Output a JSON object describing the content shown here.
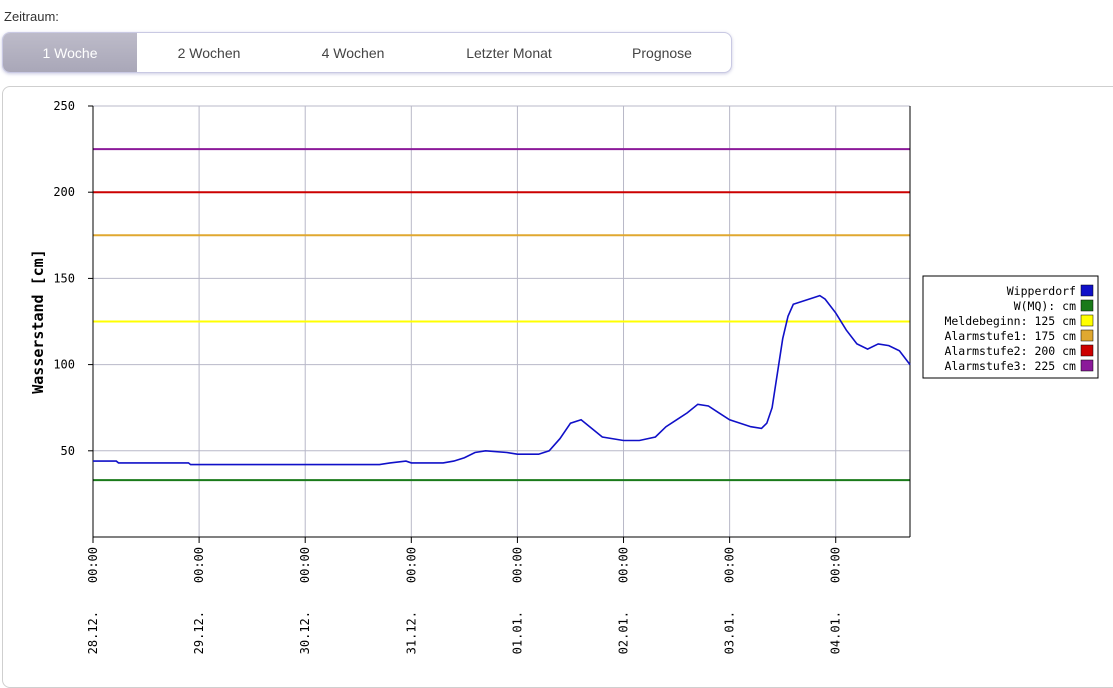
{
  "header": {
    "zeitraum_label": "Zeitraum:"
  },
  "tabs": [
    {
      "label": "1 Woche",
      "active": true
    },
    {
      "label": "2 Wochen",
      "active": false
    },
    {
      "label": "4 Wochen",
      "active": false
    },
    {
      "label": "Letzter Monat",
      "active": false
    },
    {
      "label": "Prognose",
      "active": false
    }
  ],
  "chart_data": {
    "type": "line",
    "title": "",
    "xlabel": "",
    "ylabel": "Wasserstand [cm]",
    "ylim": [
      0,
      250
    ],
    "yticks": [
      50,
      100,
      150,
      200,
      250
    ],
    "xlim": [
      0,
      7.7
    ],
    "xticks": [
      {
        "x": 0,
        "label": "28.12. 00:00"
      },
      {
        "x": 1,
        "label": "29.12. 00:00"
      },
      {
        "x": 2,
        "label": "30.12. 00:00"
      },
      {
        "x": 3,
        "label": "31.12. 00:00"
      },
      {
        "x": 4,
        "label": "01.01. 00:00"
      },
      {
        "x": 5,
        "label": "02.01. 00:00"
      },
      {
        "x": 6,
        "label": "03.01. 00:00"
      },
      {
        "x": 7,
        "label": "04.01. 00:00"
      }
    ],
    "grid": true,
    "legend_position": "right",
    "thresholds": [
      {
        "name": "W(MQ):  cm",
        "value": 33,
        "color": "#1a7a1a"
      },
      {
        "name": "Meldebeginn: 125 cm",
        "value": 125,
        "color": "#ffff00"
      },
      {
        "name": "Alarmstufe1: 175 cm",
        "value": 175,
        "color": "#e0a830"
      },
      {
        "name": "Alarmstufe2: 200 cm",
        "value": 200,
        "color": "#cc0000"
      },
      {
        "name": "Alarmstufe3: 225 cm",
        "value": 225,
        "color": "#8b1a9a"
      }
    ],
    "series": [
      {
        "name": "Wipperdorf",
        "color": "#1010c8",
        "x": [
          0,
          0.22,
          0.24,
          0.9,
          0.92,
          2.7,
          2.8,
          2.95,
          3.0,
          3.3,
          3.4,
          3.5,
          3.6,
          3.7,
          3.9,
          4.0,
          4.2,
          4.3,
          4.4,
          4.5,
          4.6,
          4.7,
          4.8,
          5.0,
          5.15,
          5.3,
          5.4,
          5.5,
          5.6,
          5.7,
          5.8,
          5.9,
          6.0,
          6.1,
          6.2,
          6.3,
          6.35,
          6.4,
          6.45,
          6.5,
          6.55,
          6.6,
          6.8,
          6.85,
          6.9,
          7.0,
          7.1,
          7.2,
          7.3,
          7.4,
          7.5,
          7.6,
          7.7
        ],
        "y": [
          44,
          44,
          43,
          43,
          42,
          42,
          43,
          44,
          43,
          43,
          44,
          46,
          49,
          50,
          49,
          48,
          48,
          50,
          57,
          66,
          68,
          63,
          58,
          56,
          56,
          58,
          64,
          68,
          72,
          77,
          76,
          72,
          68,
          66,
          64,
          63,
          66,
          75,
          95,
          115,
          128,
          135,
          139,
          140,
          138,
          130,
          120,
          112,
          109,
          112,
          111,
          108,
          100
        ]
      }
    ]
  }
}
